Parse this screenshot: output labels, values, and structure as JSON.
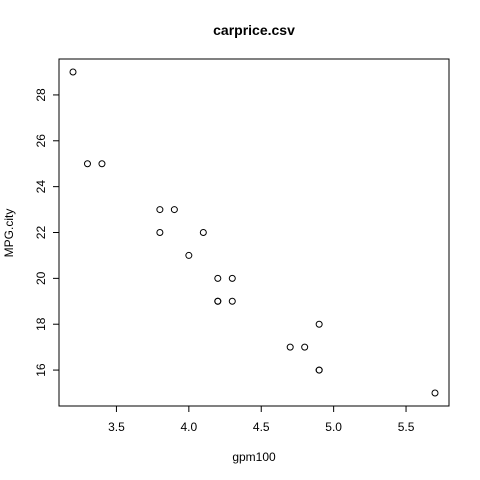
{
  "chart_data": {
    "type": "scatter",
    "title": "carprice.csv",
    "xlabel": "gpm100",
    "ylabel": "MPG.city",
    "xlim": [
      3.2,
      5.7
    ],
    "ylim": [
      15,
      29
    ],
    "xticks": [
      "3.5",
      "4.0",
      "4.5",
      "5.0",
      "5.5"
    ],
    "yticks": [
      "16",
      "18",
      "20",
      "22",
      "24",
      "26",
      "28"
    ],
    "grid": false,
    "points": [
      {
        "x": 3.2,
        "y": 29
      },
      {
        "x": 3.3,
        "y": 25
      },
      {
        "x": 3.4,
        "y": 25
      },
      {
        "x": 3.8,
        "y": 23
      },
      {
        "x": 3.9,
        "y": 23
      },
      {
        "x": 3.8,
        "y": 22
      },
      {
        "x": 4.1,
        "y": 22
      },
      {
        "x": 4.0,
        "y": 21
      },
      {
        "x": 4.2,
        "y": 20
      },
      {
        "x": 4.3,
        "y": 20
      },
      {
        "x": 4.2,
        "y": 19
      },
      {
        "x": 4.2,
        "y": 19
      },
      {
        "x": 4.3,
        "y": 19
      },
      {
        "x": 4.9,
        "y": 18
      },
      {
        "x": 4.7,
        "y": 17
      },
      {
        "x": 4.8,
        "y": 17
      },
      {
        "x": 4.9,
        "y": 16
      },
      {
        "x": 4.9,
        "y": 16
      },
      {
        "x": 5.7,
        "y": 15
      }
    ]
  }
}
